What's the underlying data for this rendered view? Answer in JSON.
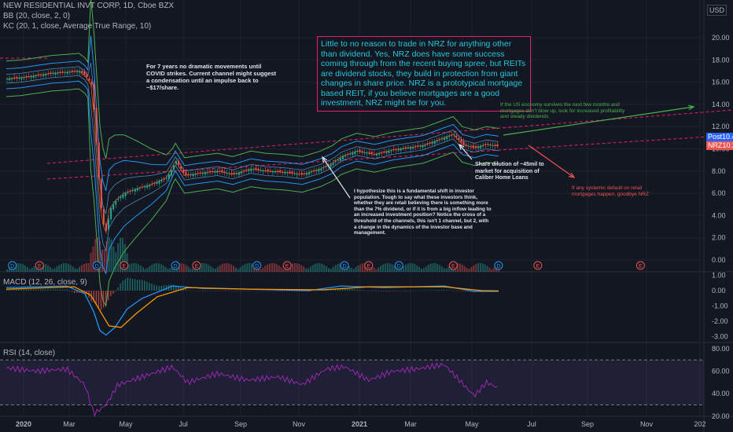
{
  "header": {
    "symbol_line": "NEW RESIDENTIAL INVT CORP, 1D, Cboe BZX",
    "bb_line": "BB (20, close, 2, 0)",
    "kc_line": "KC (20, 1, close, Average True Range, 10)",
    "currency": "USD"
  },
  "price_tags": {
    "post_label": "Post",
    "post_value": "10.45",
    "post_color": "#2962ff",
    "nrz_label": "NRZ",
    "nrz_value": "10.24",
    "nrz_color": "#ef5350"
  },
  "panes": {
    "macd_label": "MACD (12, 26, close, 9)",
    "rsi_label": "RSI (14, close)"
  },
  "annotations": {
    "covid": "For 7 years no dramatic movements until COVID strikes. Current channel might suggest a condensation until an impulse back to ~$17/share.",
    "thesis": "Little to no reason to trade in NRZ for anything other than dividend. Yes, NRZ does have some success coming through from the recent buying spree, but REITs are dividend stocks, they build in protection from giant changes in share price. NRZ is a prototypical mortgage based REIT, if you believe mortgages are a good investment, NRZ might be for you.",
    "economy": "If the US economy survives the next few months and mortgages don't blow up, look for increased profitability and steady dividends.",
    "dilution": "Share dilution of ~45mil to market for acquisition of Caliber Home Loans",
    "hypothesis": "I hypothesize this is a fundamental shift in investor population. Tough to say what these investors think, whether they are retail believing there is something more than the 7% dividend, or if it is from a big inflow leading to an increased investment position? Notice the cross of a threshold of the channels, this isn't 1 channel, but 2, with a change in the dynamics of the investor base and management.",
    "default": "If any systemic default on retail mortgages happen, goodbye NRZ"
  },
  "colors": {
    "background": "#131722",
    "grid": "#1e222d",
    "bb": "#2196f3",
    "kc_outer": "#4caf50",
    "kc_mid": "#ff6d00",
    "channel": "#e91e63",
    "macd": "#2196f3",
    "signal": "#ff9800",
    "rsi": "#9c27b0",
    "up": "#26a69a",
    "down": "#ef5350"
  },
  "chart_data": {
    "type": "line",
    "x_labels": [
      "2020",
      "Mar",
      "May",
      "Jul",
      "Sep",
      "Nov",
      "2021",
      "Mar",
      "May",
      "Jul",
      "Sep",
      "Nov",
      "202"
    ],
    "price_axis": {
      "ticks": [
        "20.00",
        "18.00",
        "16.00",
        "14.00",
        "12.00",
        "10.00",
        "8.00",
        "6.00",
        "4.00",
        "2.00",
        "0.00"
      ],
      "ylim": [
        0,
        22
      ]
    },
    "macd_axis": {
      "ticks": [
        "1.00",
        "0.00",
        "-1.00",
        "-2.00",
        "-3.00"
      ],
      "ylim": [
        -3.4,
        1.3
      ]
    },
    "rsi_axis": {
      "ticks": [
        "80.00",
        "60.00",
        "40.00",
        "20.00"
      ],
      "ylim": [
        10,
        84
      ],
      "bands": [
        70,
        30
      ]
    },
    "price_series": {
      "name": "NRZ",
      "points": [
        {
          "t": 0,
          "y": 16.3
        },
        {
          "t": 10,
          "y": 16.4
        },
        {
          "t": 20,
          "y": 16.6
        },
        {
          "t": 30,
          "y": 16.8
        },
        {
          "t": 40,
          "y": 16.9
        },
        {
          "t": 48,
          "y": 17.0
        },
        {
          "t": 52,
          "y": 16.6
        },
        {
          "t": 56,
          "y": 15.8
        },
        {
          "t": 58,
          "y": 13.0
        },
        {
          "t": 60,
          "y": 9.0
        },
        {
          "t": 62,
          "y": 5.0
        },
        {
          "t": 64,
          "y": 3.2
        },
        {
          "t": 66,
          "y": 2.5
        },
        {
          "t": 68,
          "y": 4.5
        },
        {
          "t": 72,
          "y": 5.3
        },
        {
          "t": 78,
          "y": 6.0
        },
        {
          "t": 86,
          "y": 6.4
        },
        {
          "t": 96,
          "y": 6.8
        },
        {
          "t": 106,
          "y": 7.4
        },
        {
          "t": 112,
          "y": 8.9
        },
        {
          "t": 118,
          "y": 7.6
        },
        {
          "t": 128,
          "y": 7.8
        },
        {
          "t": 140,
          "y": 8.0
        },
        {
          "t": 150,
          "y": 7.7
        },
        {
          "t": 162,
          "y": 8.2
        },
        {
          "t": 172,
          "y": 8.0
        },
        {
          "t": 184,
          "y": 7.9
        },
        {
          "t": 196,
          "y": 7.7
        },
        {
          "t": 208,
          "y": 8.2
        },
        {
          "t": 216,
          "y": 8.7
        },
        {
          "t": 222,
          "y": 9.3
        },
        {
          "t": 232,
          "y": 9.8
        },
        {
          "t": 244,
          "y": 9.5
        },
        {
          "t": 256,
          "y": 9.9
        },
        {
          "t": 266,
          "y": 10.1
        },
        {
          "t": 276,
          "y": 10.3
        },
        {
          "t": 288,
          "y": 10.9
        },
        {
          "t": 296,
          "y": 11.3
        },
        {
          "t": 302,
          "y": 10.4
        },
        {
          "t": 310,
          "y": 10.1
        },
        {
          "t": 318,
          "y": 10.4
        },
        {
          "t": 326,
          "y": 10.24
        }
      ]
    },
    "volume_note": "volume histogram in lower price pane",
    "rsi_series": {
      "name": "RSI",
      "points": [
        {
          "t": 0,
          "y": 63
        },
        {
          "t": 20,
          "y": 60
        },
        {
          "t": 40,
          "y": 62
        },
        {
          "t": 52,
          "y": 48
        },
        {
          "t": 58,
          "y": 22
        },
        {
          "t": 62,
          "y": 26
        },
        {
          "t": 66,
          "y": 30
        },
        {
          "t": 74,
          "y": 48
        },
        {
          "t": 90,
          "y": 55
        },
        {
          "t": 110,
          "y": 64
        },
        {
          "t": 120,
          "y": 50
        },
        {
          "t": 140,
          "y": 58
        },
        {
          "t": 160,
          "y": 52
        },
        {
          "t": 180,
          "y": 55
        },
        {
          "t": 196,
          "y": 48
        },
        {
          "t": 212,
          "y": 62
        },
        {
          "t": 224,
          "y": 64
        },
        {
          "t": 240,
          "y": 52
        },
        {
          "t": 256,
          "y": 60
        },
        {
          "t": 272,
          "y": 62
        },
        {
          "t": 290,
          "y": 66
        },
        {
          "t": 300,
          "y": 52
        },
        {
          "t": 310,
          "y": 38
        },
        {
          "t": 318,
          "y": 50
        },
        {
          "t": 326,
          "y": 45
        }
      ]
    },
    "macd_series": {
      "name": "MACD",
      "points": [
        {
          "t": 0,
          "y": 0.2
        },
        {
          "t": 40,
          "y": 0.3
        },
        {
          "t": 52,
          "y": -0.2
        },
        {
          "t": 58,
          "y": -1.4
        },
        {
          "t": 62,
          "y": -2.6
        },
        {
          "t": 66,
          "y": -2.9
        },
        {
          "t": 72,
          "y": -2.4
        },
        {
          "t": 80,
          "y": -1.2
        },
        {
          "t": 90,
          "y": -0.5
        },
        {
          "t": 110,
          "y": 0.3
        },
        {
          "t": 130,
          "y": 0.15
        },
        {
          "t": 160,
          "y": 0.1
        },
        {
          "t": 200,
          "y": 0.0
        },
        {
          "t": 222,
          "y": 0.3
        },
        {
          "t": 250,
          "y": 0.2
        },
        {
          "t": 290,
          "y": 0.3
        },
        {
          "t": 310,
          "y": -0.05
        },
        {
          "t": 326,
          "y": -0.05
        }
      ]
    },
    "signal_series": {
      "name": "Signal",
      "points": [
        {
          "t": 0,
          "y": 0.1
        },
        {
          "t": 45,
          "y": 0.25
        },
        {
          "t": 56,
          "y": -0.3
        },
        {
          "t": 62,
          "y": -1.3
        },
        {
          "t": 68,
          "y": -2.3
        },
        {
          "t": 76,
          "y": -2.4
        },
        {
          "t": 86,
          "y": -1.5
        },
        {
          "t": 100,
          "y": -0.4
        },
        {
          "t": 120,
          "y": 0.2
        },
        {
          "t": 160,
          "y": 0.1
        },
        {
          "t": 210,
          "y": 0.05
        },
        {
          "t": 240,
          "y": 0.25
        },
        {
          "t": 290,
          "y": 0.25
        },
        {
          "t": 315,
          "y": 0.0
        },
        {
          "t": 326,
          "y": -0.02
        }
      ]
    },
    "events": [
      {
        "label": "D",
        "t": 4
      },
      {
        "label": "E",
        "t": 22
      },
      {
        "label": "D",
        "t": 60
      },
      {
        "label": "E",
        "t": 78
      },
      {
        "label": "D",
        "t": 112
      },
      {
        "label": "E",
        "t": 126
      },
      {
        "label": "D",
        "t": 166
      },
      {
        "label": "E",
        "t": 186
      },
      {
        "label": "D",
        "t": 224
      },
      {
        "label": "E",
        "t": 240
      },
      {
        "label": "D",
        "t": 260
      },
      {
        "label": "E",
        "t": 296
      },
      {
        "label": "D",
        "t": 326
      },
      {
        "label": "E",
        "t": 352
      },
      {
        "label": "E",
        "t": 420
      }
    ]
  }
}
